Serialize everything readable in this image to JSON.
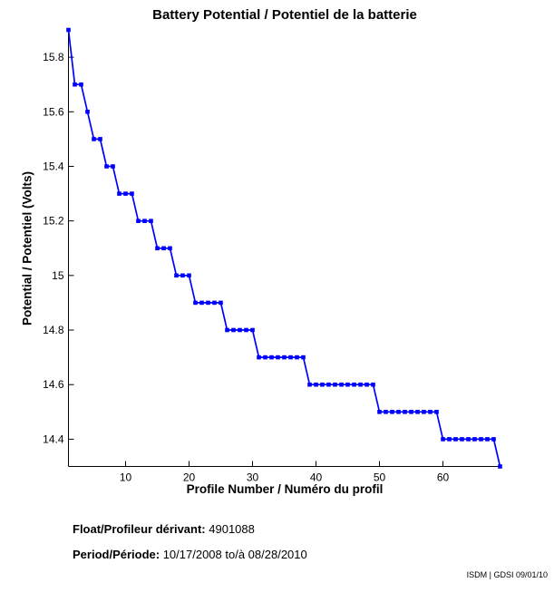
{
  "page": {
    "title": "Battery Potential / Potentiel de la batterie",
    "footer": {
      "float_label": "Float/Profileur dérivant:",
      "float_value": "4901088",
      "period_label": "Period/Période:",
      "period_value": "10/17/2008 to/à 08/28/2010"
    },
    "watermark": "ISDM | GDSI 09/01/10"
  },
  "chart_data": {
    "type": "line",
    "title": "Battery Potential / Potentiel de la batterie",
    "xlabel": "Profile Number / Numéro du profil",
    "ylabel": "Potential / Potentiel (Volts)",
    "xlim": [
      1,
      69
    ],
    "ylim": [
      14.3,
      15.9
    ],
    "xticks": [
      10,
      20,
      30,
      40,
      50,
      60
    ],
    "yticks": [
      14.4,
      14.6,
      14.8,
      15,
      15.2,
      15.4,
      15.6,
      15.8
    ],
    "ytick_labels": [
      "14.4",
      "14.6",
      "14.8",
      "15",
      "15.2",
      "15.4",
      "15.6",
      "15.8"
    ],
    "grid": false,
    "legend_position": "none",
    "line_color": "#0000FF",
    "axis_color": "#000000",
    "marker": "filled-square",
    "series": [
      {
        "name": "battery-potential-volts",
        "x": [
          1,
          2,
          3,
          4,
          5,
          6,
          7,
          8,
          9,
          10,
          11,
          12,
          13,
          14,
          15,
          16,
          17,
          18,
          19,
          20,
          21,
          22,
          23,
          24,
          25,
          26,
          27,
          28,
          29,
          30,
          31,
          32,
          33,
          34,
          35,
          36,
          37,
          38,
          39,
          40,
          41,
          42,
          43,
          44,
          45,
          46,
          47,
          48,
          49,
          50,
          51,
          52,
          53,
          54,
          55,
          56,
          57,
          58,
          59,
          60,
          61,
          62,
          63,
          64,
          65,
          66,
          67,
          68,
          69
        ],
        "y": [
          15.9,
          15.7,
          15.7,
          15.6,
          15.5,
          15.5,
          15.4,
          15.4,
          15.3,
          15.3,
          15.3,
          15.2,
          15.2,
          15.2,
          15.1,
          15.1,
          15.1,
          15.0,
          15.0,
          15.0,
          14.9,
          14.9,
          14.9,
          14.9,
          14.9,
          14.8,
          14.8,
          14.8,
          14.8,
          14.8,
          14.7,
          14.7,
          14.7,
          14.7,
          14.7,
          14.7,
          14.7,
          14.7,
          14.6,
          14.6,
          14.6,
          14.6,
          14.6,
          14.6,
          14.6,
          14.6,
          14.6,
          14.6,
          14.6,
          14.5,
          14.5,
          14.5,
          14.5,
          14.5,
          14.5,
          14.5,
          14.5,
          14.5,
          14.5,
          14.4,
          14.4,
          14.4,
          14.4,
          14.4,
          14.4,
          14.4,
          14.4,
          14.4,
          14.3
        ]
      }
    ]
  }
}
